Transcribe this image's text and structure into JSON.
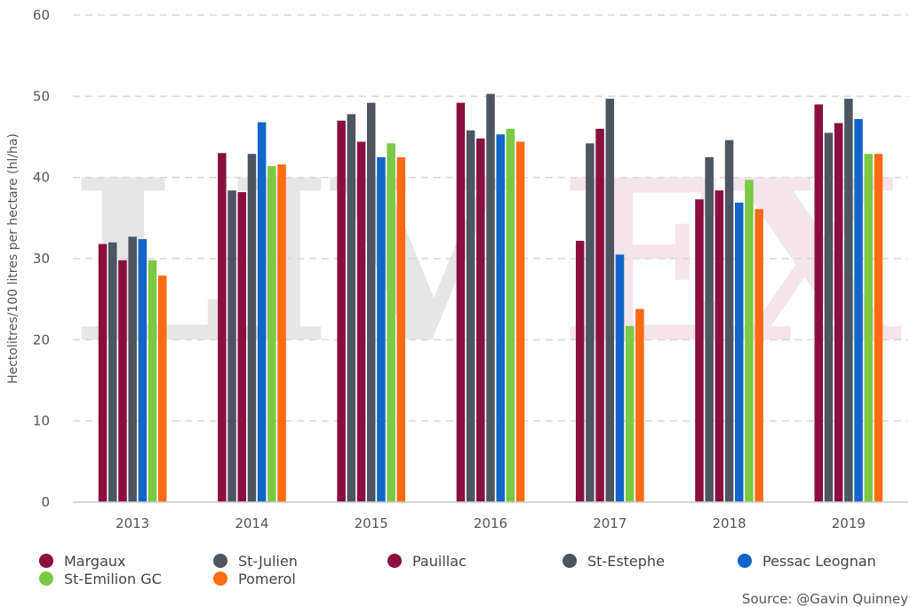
{
  "watermark": {
    "left": "LIV",
    "right": "EX",
    "left_color": "#e6e6e6",
    "right_color": "#f5e4ea"
  },
  "source": "Source: @Gavin Quinney",
  "chart_data": {
    "type": "bar",
    "ylabel": "Hectolitres/100 litres per hectare (hl/ha)",
    "ylim": [
      0,
      60
    ],
    "yticks": [
      0,
      10,
      20,
      30,
      40,
      50,
      60
    ],
    "grid": true,
    "legend_position": "bottom",
    "categories": [
      "2013",
      "2014",
      "2015",
      "2016",
      "2017",
      "2018",
      "2019"
    ],
    "series": [
      {
        "name": "Margaux",
        "color": "#8a0f3e",
        "values": [
          31.8,
          43.0,
          47.0,
          49.2,
          32.2,
          37.3,
          49.0
        ]
      },
      {
        "name": "St-Julien",
        "color": "#4c5560",
        "values": [
          32.0,
          38.4,
          47.8,
          45.8,
          44.2,
          42.5,
          45.5
        ]
      },
      {
        "name": "Pauillac",
        "color": "#8a0f3e",
        "values": [
          29.8,
          38.2,
          44.4,
          44.8,
          46.0,
          38.4,
          46.7
        ]
      },
      {
        "name": "St-Estephe",
        "color": "#4c5560",
        "values": [
          32.7,
          42.9,
          49.2,
          50.3,
          49.7,
          44.6,
          49.7
        ]
      },
      {
        "name": "Pessac Leognan",
        "color": "#1266c9",
        "values": [
          32.4,
          46.8,
          42.5,
          45.3,
          30.5,
          36.9,
          47.2
        ]
      },
      {
        "name": "St-Emilion GC",
        "color": "#7bc843",
        "values": [
          29.8,
          41.4,
          44.2,
          46.0,
          21.7,
          39.7,
          42.9
        ]
      },
      {
        "name": "Pomerol",
        "color": "#ff6a13",
        "values": [
          27.9,
          41.6,
          42.5,
          44.4,
          23.8,
          36.1,
          42.9
        ]
      }
    ]
  }
}
